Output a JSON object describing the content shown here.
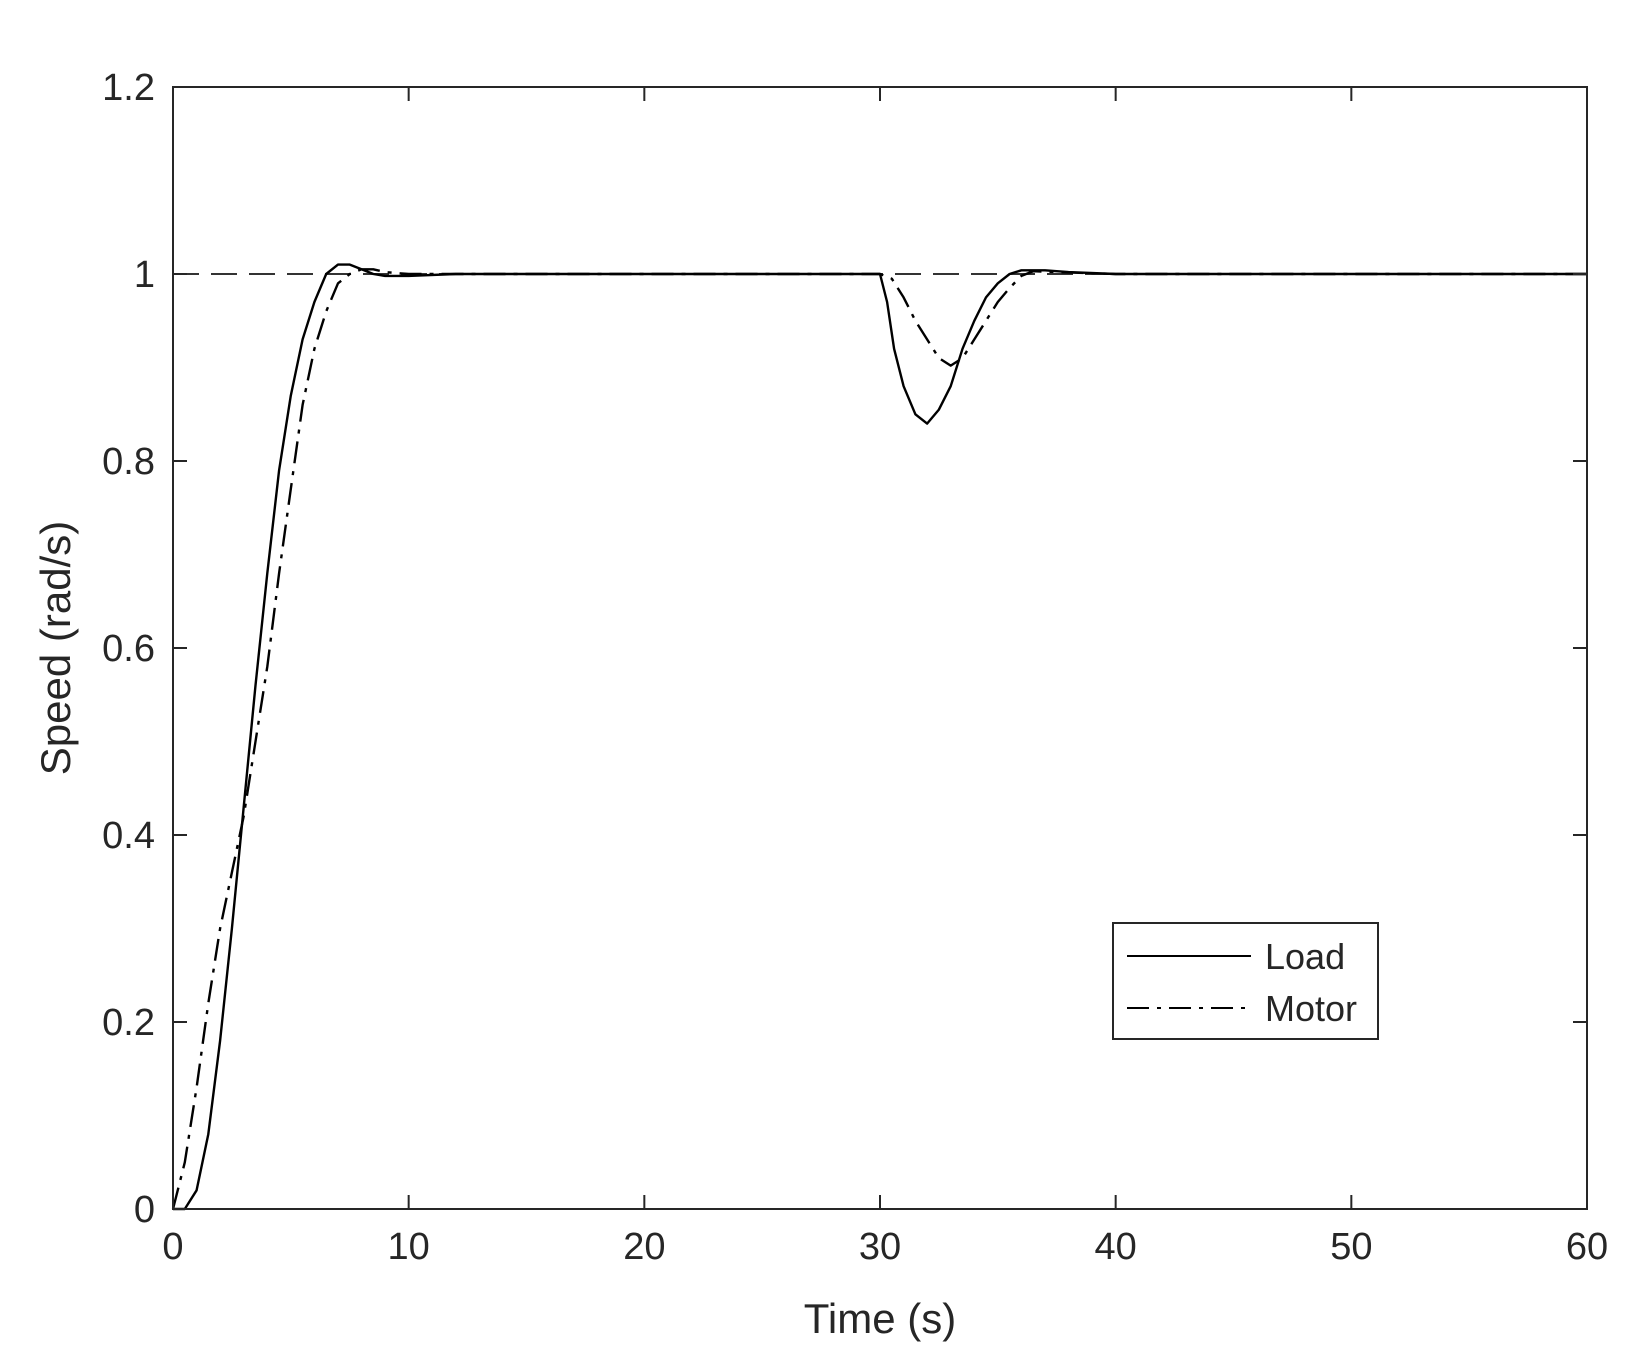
{
  "chart_data": {
    "type": "line",
    "title": "",
    "xlabel": "Time (s)",
    "ylabel": "Speed (rad/s)",
    "xlim": [
      0,
      60
    ],
    "ylim": [
      0,
      1.2
    ],
    "xticks": [
      0,
      10,
      20,
      30,
      40,
      50,
      60
    ],
    "yticks": [
      0,
      0.2,
      0.4,
      0.6,
      0.8,
      1,
      1.2
    ],
    "xtick_labels": [
      "0",
      "10",
      "20",
      "30",
      "40",
      "50",
      "60"
    ],
    "ytick_labels": [
      "0",
      "0.2",
      "0.4",
      "0.6",
      "0.8",
      "1",
      "1.2"
    ],
    "grid": false,
    "legend_position": "lower-right",
    "reference_line": {
      "y": 1,
      "style": "dashed",
      "color": "#333333"
    },
    "series": [
      {
        "name": "Load",
        "style": "solid",
        "color": "#000000",
        "points": [
          [
            0,
            0
          ],
          [
            0.5,
            0
          ],
          [
            1,
            0.02
          ],
          [
            1.5,
            0.08
          ],
          [
            2,
            0.18
          ],
          [
            2.5,
            0.3
          ],
          [
            3,
            0.43
          ],
          [
            3.5,
            0.56
          ],
          [
            4,
            0.68
          ],
          [
            4.5,
            0.79
          ],
          [
            5,
            0.87
          ],
          [
            5.5,
            0.93
          ],
          [
            6,
            0.97
          ],
          [
            6.5,
            1.0
          ],
          [
            7,
            1.01
          ],
          [
            7.5,
            1.01
          ],
          [
            8,
            1.005
          ],
          [
            8.5,
            1.0
          ],
          [
            9,
            0.998
          ],
          [
            10,
            0.998
          ],
          [
            12,
            1.0
          ],
          [
            15,
            1.0
          ],
          [
            20,
            1.0
          ],
          [
            25,
            1.0
          ],
          [
            30,
            1.0
          ],
          [
            30.3,
            0.97
          ],
          [
            30.6,
            0.92
          ],
          [
            31,
            0.88
          ],
          [
            31.5,
            0.85
          ],
          [
            32,
            0.84
          ],
          [
            32.5,
            0.855
          ],
          [
            33,
            0.88
          ],
          [
            33.5,
            0.92
          ],
          [
            34,
            0.95
          ],
          [
            34.5,
            0.975
          ],
          [
            35,
            0.99
          ],
          [
            35.5,
            1.0
          ],
          [
            36,
            1.004
          ],
          [
            37,
            1.004
          ],
          [
            38,
            1.002
          ],
          [
            40,
            1.0
          ],
          [
            50,
            1.0
          ],
          [
            60,
            1.0
          ]
        ]
      },
      {
        "name": "Motor",
        "style": "dashdot",
        "color": "#000000",
        "points": [
          [
            0,
            0
          ],
          [
            0.5,
            0.05
          ],
          [
            1,
            0.13
          ],
          [
            1.5,
            0.22
          ],
          [
            2,
            0.3
          ],
          [
            2.5,
            0.36
          ],
          [
            3,
            0.42
          ],
          [
            3.5,
            0.5
          ],
          [
            4,
            0.58
          ],
          [
            4.5,
            0.68
          ],
          [
            5,
            0.77
          ],
          [
            5.5,
            0.86
          ],
          [
            6,
            0.92
          ],
          [
            6.5,
            0.96
          ],
          [
            7,
            0.99
          ],
          [
            7.5,
            1.0
          ],
          [
            8,
            1.005
          ],
          [
            8.5,
            1.005
          ],
          [
            9,
            1.002
          ],
          [
            10,
            1.0
          ],
          [
            15,
            1.0
          ],
          [
            20,
            1.0
          ],
          [
            25,
            1.0
          ],
          [
            30,
            1.0
          ],
          [
            30.5,
            0.995
          ],
          [
            31,
            0.975
          ],
          [
            31.5,
            0.95
          ],
          [
            32,
            0.93
          ],
          [
            32.5,
            0.91
          ],
          [
            33,
            0.902
          ],
          [
            33.5,
            0.91
          ],
          [
            34,
            0.93
          ],
          [
            34.5,
            0.95
          ],
          [
            35,
            0.97
          ],
          [
            35.5,
            0.985
          ],
          [
            36,
            0.998
          ],
          [
            36.5,
            1.003
          ],
          [
            37.5,
            1.002
          ],
          [
            40,
            1.0
          ],
          [
            50,
            1.0
          ],
          [
            60,
            1.0
          ]
        ]
      }
    ]
  }
}
